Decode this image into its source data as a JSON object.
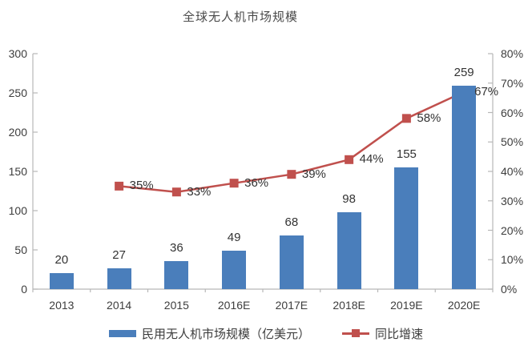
{
  "title": "全球无人机市场规模",
  "chart_data": {
    "type": "bar",
    "subtype": "bar+line-combo",
    "categories": [
      "2013",
      "2014",
      "2015",
      "2016E",
      "2017E",
      "2018E",
      "2019E",
      "2020E"
    ],
    "series": [
      {
        "name": "民用无人机市场规模（亿美元）",
        "type": "bar",
        "axis": "left",
        "color": "#4a7ebb",
        "values": [
          20,
          27,
          36,
          49,
          68,
          98,
          155,
          259
        ],
        "data_labels": [
          "20",
          "27",
          "36",
          "49",
          "68",
          "98",
          "155",
          "259"
        ]
      },
      {
        "name": "同比增速",
        "type": "line",
        "axis": "right",
        "color": "#c0504d",
        "values": [
          null,
          35,
          33,
          36,
          39,
          44,
          58,
          67
        ],
        "data_labels": [
          null,
          "35%",
          "33%",
          "36%",
          "39%",
          "44%",
          "58%",
          "67%"
        ]
      }
    ],
    "left_axis": {
      "min": 0,
      "max": 300,
      "step": 50,
      "ticks": [
        "0",
        "50",
        "100",
        "150",
        "200",
        "250",
        "300"
      ]
    },
    "right_axis": {
      "min": 0,
      "max": 80,
      "step": 10,
      "ticks": [
        "0%",
        "10%",
        "20%",
        "30%",
        "40%",
        "50%",
        "60%",
        "70%",
        "80%"
      ]
    },
    "grid": false,
    "legend_position": "bottom",
    "title": "全球无人机市场规模"
  },
  "colors": {
    "bar": "#4a7ebb",
    "line": "#c0504d",
    "axis": "#b7b7b7",
    "text": "#3d3d3d"
  }
}
